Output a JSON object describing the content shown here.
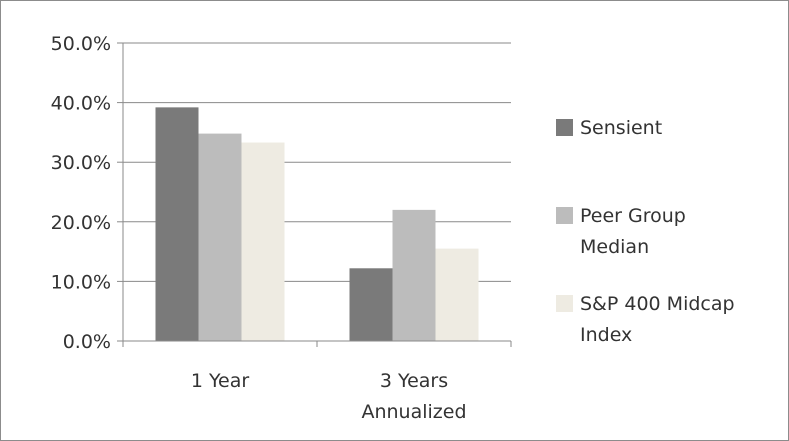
{
  "chart_data": {
    "type": "bar",
    "categories": [
      [
        "1 Year"
      ],
      [
        "3 Years",
        "Annualized"
      ]
    ],
    "series": [
      {
        "name": "Sensient",
        "values": [
          39.2,
          12.2
        ],
        "color": "#7a7a7a"
      },
      {
        "name": [
          "Peer Group",
          "Median"
        ],
        "values": [
          34.8,
          22.0
        ],
        "color": "#bcbcbc"
      },
      {
        "name": [
          "S&P 400 Midcap",
          "Index"
        ],
        "values": [
          33.3,
          15.5
        ],
        "color": "#eeebe2"
      }
    ],
    "y_ticks": [
      "0.0%",
      "10.0%",
      "20.0%",
      "30.0%",
      "40.0%",
      "50.0%"
    ],
    "ylim": [
      0,
      50
    ],
    "grid": true,
    "legend_position": "right"
  }
}
